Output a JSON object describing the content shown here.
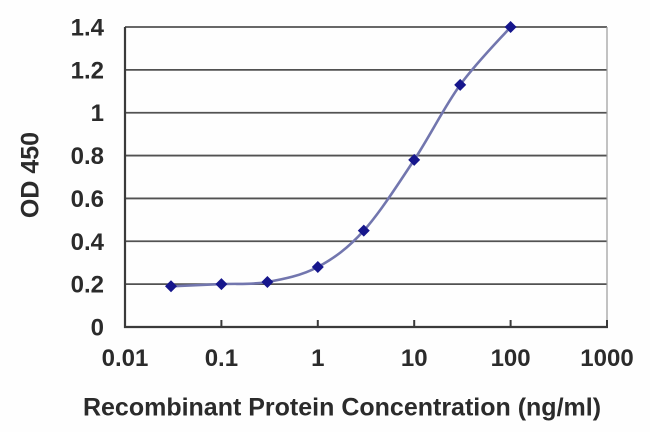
{
  "chart_data": {
    "type": "line",
    "title": "",
    "xlabel": "Recombinant Protein Concentration (ng/ml)",
    "ylabel": "OD 450",
    "x_scale": "log",
    "xlim": [
      0.01,
      1000
    ],
    "ylim": [
      0,
      1.4
    ],
    "x_ticks": [
      0.01,
      0.1,
      1,
      10,
      100,
      1000
    ],
    "x_tick_labels": [
      "0.01",
      "0.1",
      "1",
      "10",
      "100",
      "1000"
    ],
    "y_ticks": [
      0,
      0.2,
      0.4,
      0.6,
      0.8,
      1,
      1.2,
      1.4
    ],
    "y_tick_labels": [
      "0",
      "0.2",
      "0.4",
      "0.6",
      "0.8",
      "1",
      "1.2",
      "1.4"
    ],
    "grid": "horizontal",
    "legend": "none",
    "series": [
      {
        "marker": "diamond",
        "line_style": "smooth",
        "x": [
          0.03,
          0.1,
          0.3,
          1,
          3,
          10,
          30,
          100
        ],
        "y": [
          0.19,
          0.2,
          0.21,
          0.28,
          0.45,
          0.78,
          1.13,
          1.4
        ]
      }
    ],
    "colors": {
      "line": "#7276ae",
      "marker": "#16168c",
      "gridline": "#525252",
      "axis": "#3a3a3a",
      "right_border": "#9b9b9b",
      "text": "#2b2b2b",
      "background": "#fefefe"
    }
  }
}
